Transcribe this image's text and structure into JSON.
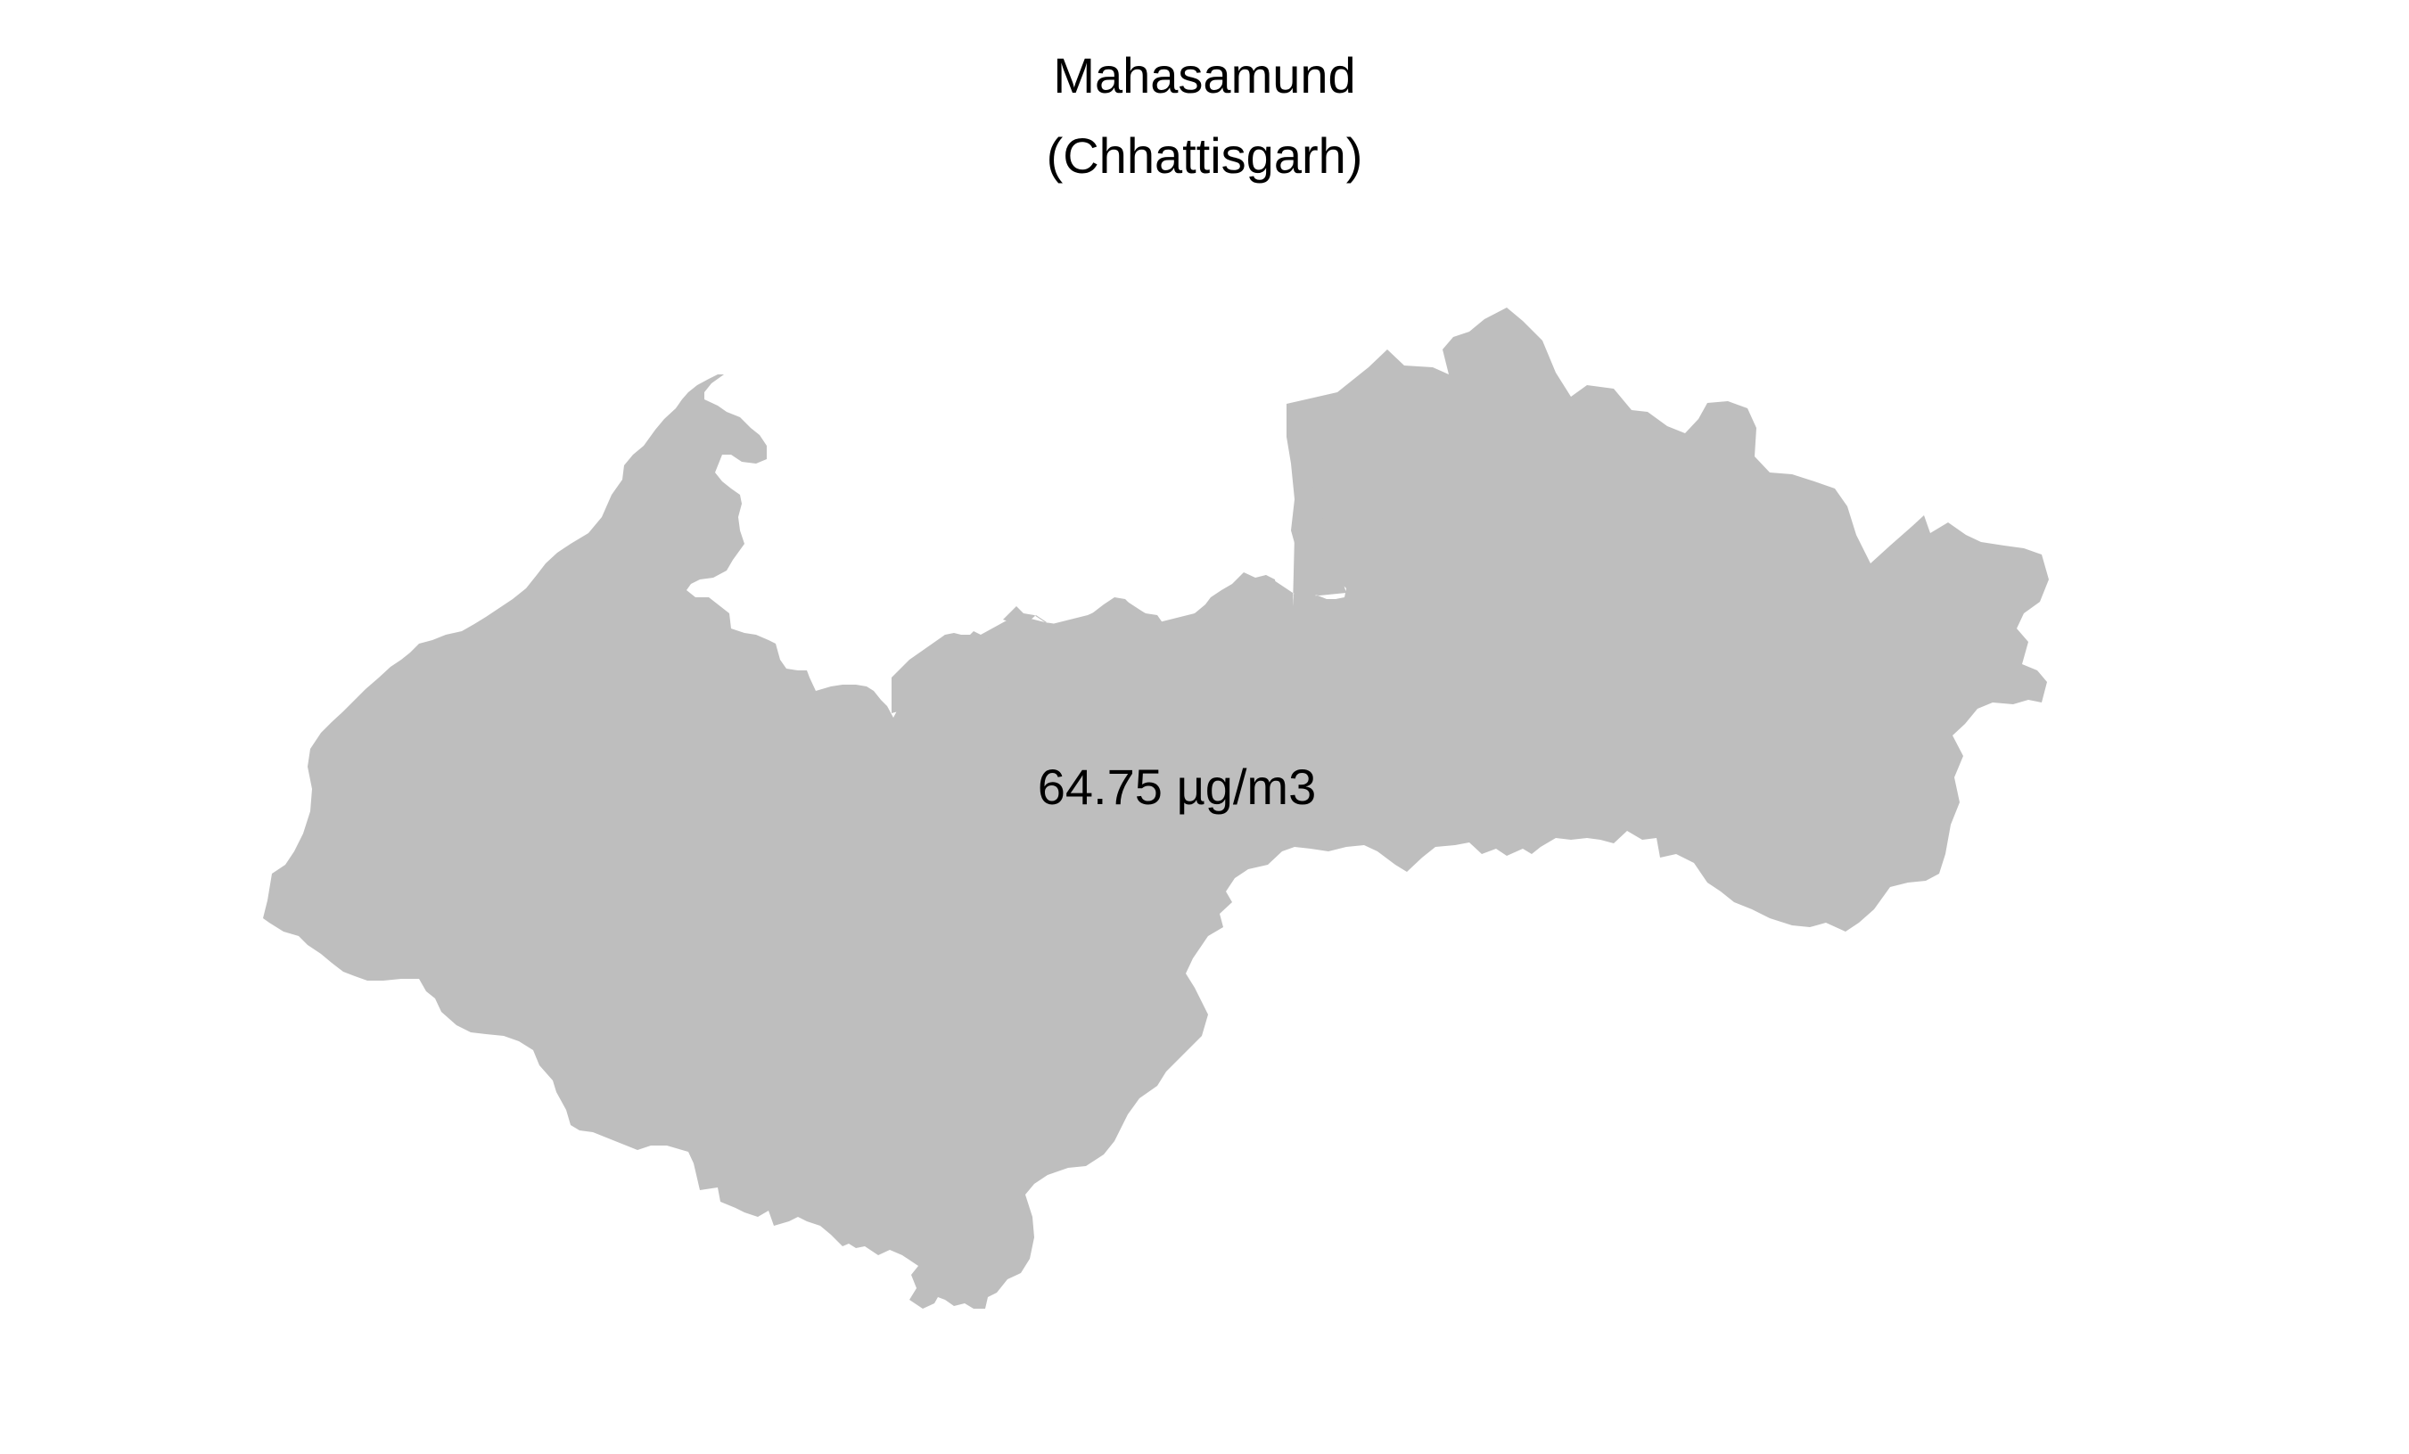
{
  "map": {
    "title": "Mahasamund",
    "subtitle": "(Chhattisgarh)",
    "value_label": "64.75 µg/m3",
    "value": 64.75,
    "unit": "µg/m3",
    "region_fill": "#bebebe",
    "background": "#ffffff"
  }
}
